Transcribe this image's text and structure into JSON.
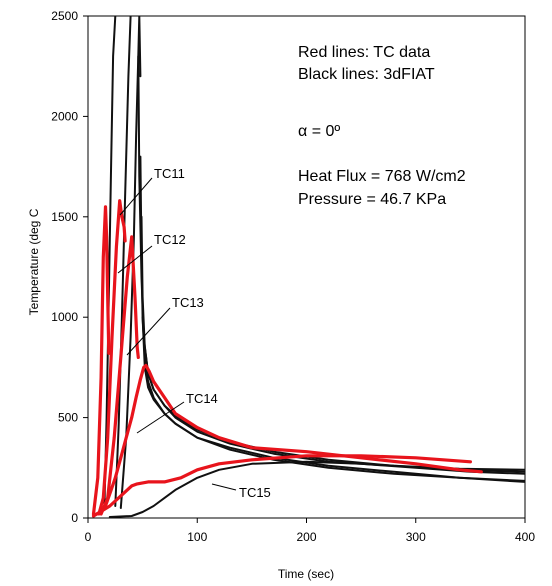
{
  "chart_data": {
    "type": "line",
    "xlabel": "Time (sec)",
    "ylabel": "Temperature (deg C",
    "xlim": [
      0,
      400
    ],
    "ylim": [
      0,
      2500
    ],
    "xticks": [
      "0",
      "100",
      "200",
      "300",
      "400"
    ],
    "yticks": [
      "0",
      "500",
      "1000",
      "1500",
      "2000",
      "2500"
    ],
    "grid": false,
    "annotations": [
      "Red lines: TC data",
      "Black lines: 3dFIAT",
      "α = 0º",
      "Heat Flux = 768 W/cm2",
      "Pressure = 46.7 KPa"
    ],
    "series_labels": [
      "TC11",
      "TC12",
      "TC13",
      "TC14",
      "TC15"
    ],
    "colors": {
      "tc_data": "#e8141c",
      "fiat": "#111111"
    },
    "series": [
      {
        "group": "tc_data",
        "x": [
          5,
          9,
          12,
          14,
          16,
          17,
          18,
          19
        ],
        "y": [
          20,
          200,
          700,
          1300,
          1550,
          1400,
          1100,
          820
        ]
      },
      {
        "group": "tc_data",
        "x": [
          10,
          14,
          18,
          22,
          26,
          29,
          31,
          33,
          34
        ],
        "y": [
          20,
          100,
          400,
          900,
          1350,
          1580,
          1500,
          1450,
          1380
        ]
      },
      {
        "group": "tc_data",
        "x": [
          12,
          18,
          24,
          30,
          36,
          40,
          43,
          45,
          46
        ],
        "y": [
          20,
          100,
          400,
          800,
          1200,
          1400,
          1100,
          850,
          800
        ]
      },
      {
        "group": "tc_data",
        "x": [
          8,
          12,
          16,
          20,
          25,
          30,
          35,
          40,
          44,
          48,
          51,
          53,
          56,
          60,
          70,
          80,
          100,
          120,
          150,
          200,
          250,
          300,
          340,
          360
        ],
        "y": [
          20,
          30,
          60,
          120,
          200,
          300,
          400,
          500,
          600,
          690,
          750,
          760,
          730,
          680,
          600,
          520,
          450,
          400,
          350,
          330,
          300,
          270,
          240,
          230
        ]
      },
      {
        "group": "tc_data",
        "x": [
          5,
          20,
          40,
          45,
          55,
          70,
          85,
          100,
          120,
          150,
          200,
          250,
          300,
          350
        ],
        "y": [
          10,
          60,
          160,
          170,
          180,
          180,
          200,
          240,
          270,
          290,
          310,
          310,
          300,
          280
        ]
      },
      {
        "group": "fiat",
        "x": [
          15,
          17,
          19,
          21,
          23,
          25
        ],
        "y": [
          50,
          500,
          1100,
          1700,
          2300,
          2500
        ]
      },
      {
        "group": "fiat",
        "x": [
          25,
          28,
          31,
          34,
          37,
          39
        ],
        "y": [
          60,
          450,
          1000,
          1600,
          2200,
          2500
        ]
      },
      {
        "group": "fiat",
        "x": [
          30,
          35,
          39,
          42,
          44,
          46,
          47,
          48
        ],
        "y": [
          50,
          400,
          900,
          1400,
          1900,
          2300,
          2500,
          2200
        ]
      },
      {
        "group": "fiat",
        "x": [
          48,
          49,
          50,
          52,
          55,
          60,
          70,
          80,
          100,
          130,
          170,
          220,
          280,
          340,
          400
        ],
        "y": [
          1800,
          1300,
          1000,
          800,
          680,
          600,
          520,
          470,
          400,
          340,
          290,
          250,
          220,
          200,
          180
        ]
      },
      {
        "group": "fiat",
        "x": [
          49,
          50,
          52,
          55,
          60,
          70,
          80,
          100,
          130,
          170,
          220,
          280,
          340,
          400
        ],
        "y": [
          1500,
          1100,
          850,
          720,
          640,
          560,
          500,
          430,
          370,
          320,
          280,
          260,
          240,
          230
        ]
      },
      {
        "group": "fiat",
        "x": [
          46,
          47,
          49,
          51,
          55,
          60,
          70,
          80,
          100,
          130,
          170,
          220,
          280,
          340,
          400
        ],
        "y": [
          2300,
          1700,
          1200,
          900,
          720,
          640,
          560,
          510,
          440,
          380,
          330,
          290,
          260,
          245,
          240
        ]
      },
      {
        "group": "fiat",
        "x": [
          50,
          52,
          55,
          60,
          70,
          80,
          100,
          130,
          170,
          220,
          280,
          340,
          400
        ],
        "y": [
          1000,
          750,
          650,
          590,
          520,
          470,
          400,
          350,
          300,
          260,
          230,
          200,
          185
        ]
      },
      {
        "group": "fiat",
        "x": [
          20,
          40,
          50,
          60,
          70,
          80,
          100,
          120,
          150,
          200,
          250,
          300,
          350,
          400
        ],
        "y": [
          5,
          10,
          30,
          60,
          100,
          140,
          200,
          240,
          270,
          280,
          270,
          250,
          230,
          220
        ]
      }
    ]
  }
}
